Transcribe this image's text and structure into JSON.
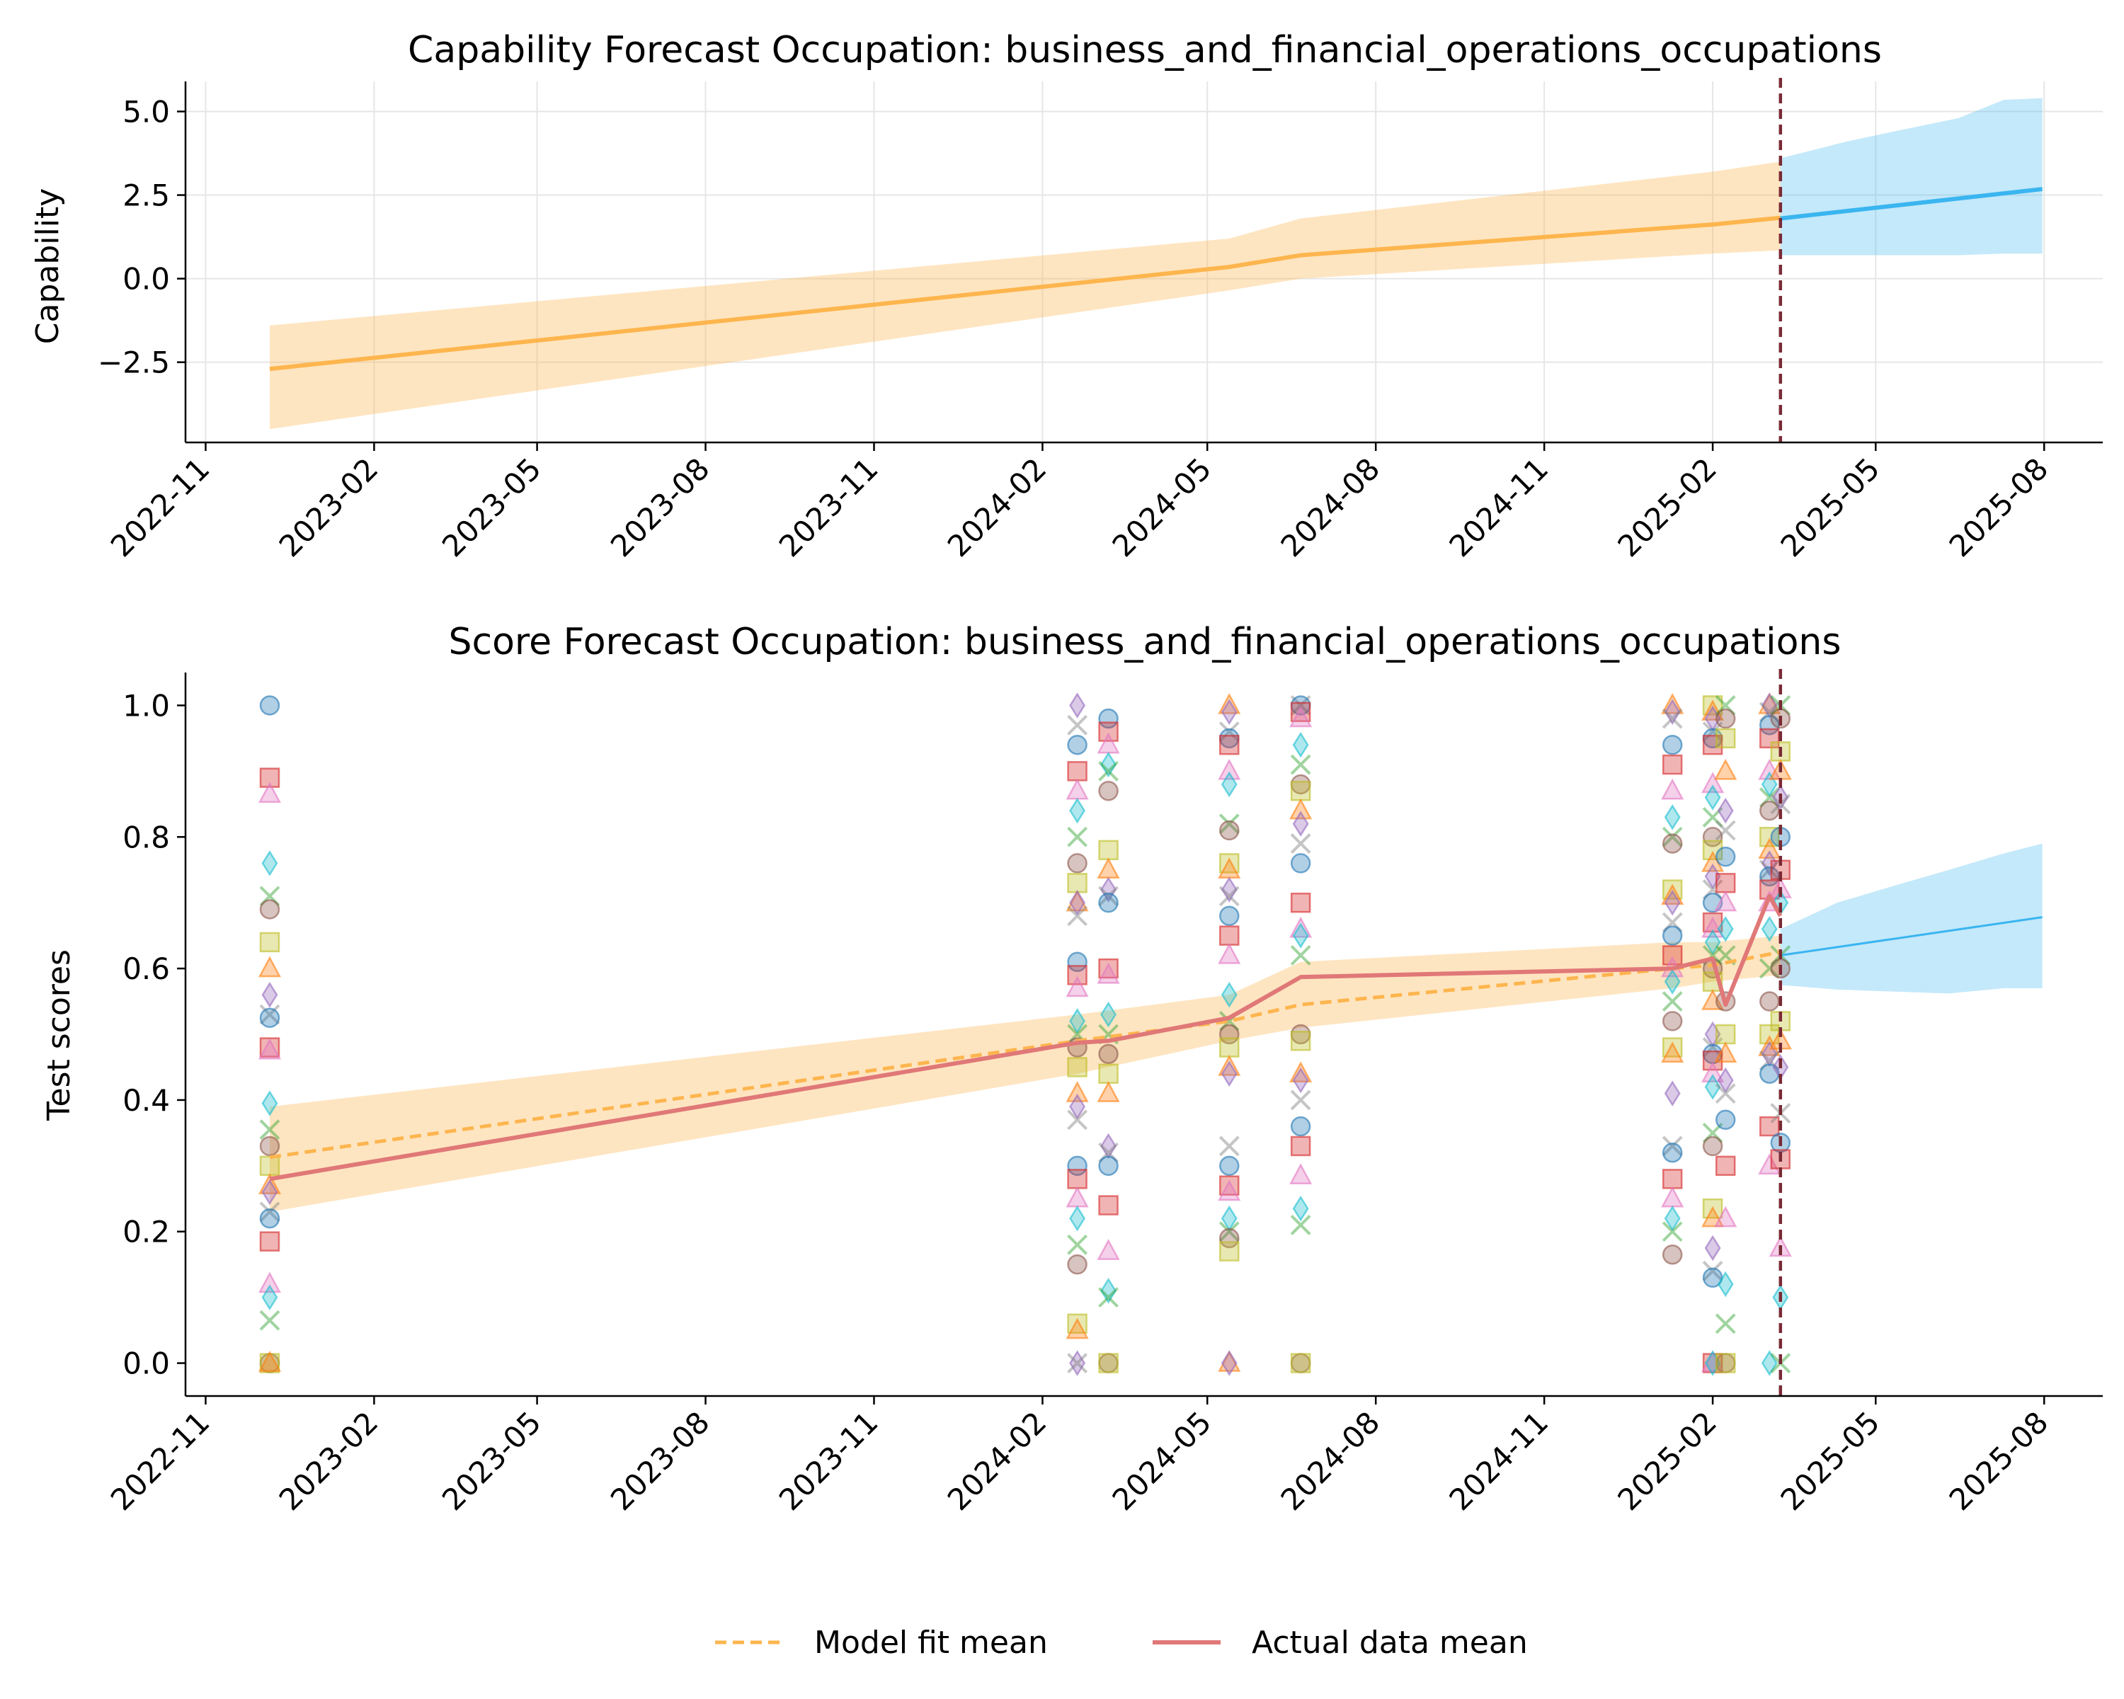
{
  "charts": [
    {
      "type": "line",
      "title": "Capability Forecast Occupation: business_and_financial_operations_occupations",
      "ylabel": "Capability",
      "xlabel": "",
      "ylim": [
        -4.9,
        5.9
      ],
      "xlim": [
        "2022-10-21",
        "2025-09-02"
      ],
      "yticks": [
        5.0,
        2.5,
        0.0,
        -2.5
      ],
      "ytick_labels": [
        "5.0",
        "2.5",
        "0.0",
        "−2.5"
      ],
      "xticks": [
        "2022-11-01",
        "2023-02-01",
        "2023-05-01",
        "2023-08-01",
        "2023-11-01",
        "2024-02-01",
        "2024-05-01",
        "2024-08-01",
        "2024-11-01",
        "2025-02-01",
        "2025-05-01",
        "2025-08-01"
      ],
      "xtick_labels": [
        "2022-11",
        "2023-02",
        "2023-05",
        "2023-08",
        "2023-11",
        "2024-02",
        "2024-05",
        "2024-08",
        "2024-11",
        "2025-02",
        "2025-05",
        "2025-08"
      ],
      "grid": true,
      "cutoff_date": "2025-03-10",
      "series": [
        {
          "role": "fit",
          "color": "#fdb54e",
          "x": [
            "2022-12-06",
            "2024-05-13",
            "2024-06-21",
            "2025-02-01",
            "2025-03-10"
          ],
          "y": [
            -2.7,
            0.35,
            0.7,
            1.62,
            1.82
          ],
          "band_lower": [
            -4.5,
            -0.35,
            0.0,
            0.75,
            0.85
          ],
          "band_upper": [
            -1.4,
            1.2,
            1.8,
            3.2,
            3.5
          ]
        },
        {
          "role": "forecast",
          "color": "#3ab5f0",
          "x": [
            "2025-03-10",
            "2025-07-31"
          ],
          "y": [
            1.8,
            2.68
          ],
          "band_x": [
            "2025-03-10",
            "2025-04-15",
            "2025-05-15",
            "2025-06-15",
            "2025-07-10",
            "2025-07-31"
          ],
          "band_lower": [
            0.7,
            0.7,
            0.7,
            0.7,
            0.75,
            0.75
          ],
          "band_upper": [
            3.6,
            4.1,
            4.45,
            4.8,
            5.35,
            5.4
          ]
        }
      ]
    },
    {
      "type": "scatter",
      "title": "Score Forecast Occupation: business_and_financial_operations_occupations",
      "ylabel": "Test scores",
      "xlabel": "",
      "ylim": [
        -0.05,
        1.05
      ],
      "xlim": [
        "2022-10-21",
        "2025-09-02"
      ],
      "yticks": [
        0.0,
        0.2,
        0.4,
        0.6,
        0.8,
        1.0
      ],
      "ytick_labels": [
        "0.0",
        "0.2",
        "0.4",
        "0.6",
        "0.8",
        "1.0"
      ],
      "xticks": [
        "2022-11-01",
        "2023-02-01",
        "2023-05-01",
        "2023-08-01",
        "2023-11-01",
        "2024-02-01",
        "2024-05-01",
        "2024-08-01",
        "2024-11-01",
        "2025-02-01",
        "2025-05-01",
        "2025-08-01"
      ],
      "xtick_labels": [
        "2022-11",
        "2023-02",
        "2023-05",
        "2023-08",
        "2023-11",
        "2024-02",
        "2024-05",
        "2024-08",
        "2024-11",
        "2025-02",
        "2025-05",
        "2025-08"
      ],
      "grid": false,
      "cutoff_date": "2025-03-10",
      "fit_band": {
        "color": "#fdb54e",
        "x": [
          "2022-12-06",
          "2024-02-20",
          "2024-05-13",
          "2024-06-21",
          "2025-01-10",
          "2025-02-01",
          "2025-03-10"
        ],
        "lower": [
          0.23,
          0.44,
          0.49,
          0.51,
          0.57,
          0.58,
          0.59
        ],
        "upper": [
          0.39,
          0.53,
          0.56,
          0.61,
          0.64,
          0.64,
          0.65
        ]
      },
      "fit_mean": {
        "name": "Model fit mean",
        "color": "#fdb54e",
        "x": [
          "2022-12-06",
          "2024-02-20",
          "2024-05-13",
          "2024-06-21",
          "2025-01-10",
          "2025-02-01",
          "2025-03-10"
        ],
        "y": [
          0.313,
          0.49,
          0.52,
          0.545,
          0.6,
          0.605,
          0.625
        ]
      },
      "actual_mean": {
        "name": "Actual data mean",
        "color": "#e07878",
        "x": [
          "2022-12-06",
          "2024-02-20",
          "2024-03-08",
          "2024-05-13",
          "2024-06-21",
          "2025-01-10",
          "2025-02-01",
          "2025-02-08",
          "2025-03-04",
          "2025-03-10"
        ],
        "y": [
          0.28,
          0.487,
          0.49,
          0.525,
          0.587,
          0.6,
          0.615,
          0.545,
          0.71,
          0.68
        ]
      },
      "forecast": {
        "color": "#3ab5f0",
        "x": [
          "2025-03-10",
          "2025-07-31"
        ],
        "y": [
          0.62,
          0.678
        ],
        "band_x": [
          "2025-03-10",
          "2025-04-10",
          "2025-05-10",
          "2025-06-10",
          "2025-07-10",
          "2025-07-31"
        ],
        "band_lower": [
          0.575,
          0.568,
          0.565,
          0.562,
          0.57,
          0.57
        ],
        "band_upper": [
          0.66,
          0.7,
          0.725,
          0.75,
          0.775,
          0.79
        ]
      },
      "scatter_groups": [
        {
          "date": "2022-12-06",
          "values": [
            1.0,
            0.89,
            0.865,
            0.76,
            0.71,
            0.69,
            0.64,
            0.6,
            0.56,
            0.53,
            0.525,
            0.48,
            0.475,
            0.395,
            0.355,
            0.33,
            0.3,
            0.27,
            0.26,
            0.23,
            0.22,
            0.185,
            0.12,
            0.1,
            0.065,
            0.0,
            0.0,
            0.0
          ]
        },
        {
          "date": "2024-02-20",
          "values": [
            1.0,
            0.97,
            0.94,
            0.9,
            0.87,
            0.84,
            0.8,
            0.76,
            0.73,
            0.7,
            0.7,
            0.68,
            0.61,
            0.59,
            0.57,
            0.52,
            0.5,
            0.48,
            0.45,
            0.41,
            0.39,
            0.37,
            0.3,
            0.28,
            0.25,
            0.22,
            0.18,
            0.15,
            0.06,
            0.05,
            0.0,
            0.0
          ]
        },
        {
          "date": "2024-03-08",
          "values": [
            0.98,
            0.96,
            0.94,
            0.91,
            0.9,
            0.87,
            0.78,
            0.75,
            0.72,
            0.71,
            0.7,
            0.6,
            0.59,
            0.53,
            0.5,
            0.47,
            0.44,
            0.41,
            0.33,
            0.32,
            0.3,
            0.24,
            0.17,
            0.11,
            0.1,
            0.0,
            0.0
          ]
        },
        {
          "date": "2024-05-13",
          "values": [
            1.0,
            0.99,
            0.96,
            0.95,
            0.94,
            0.9,
            0.88,
            0.82,
            0.81,
            0.76,
            0.75,
            0.72,
            0.71,
            0.68,
            0.65,
            0.62,
            0.56,
            0.52,
            0.5,
            0.48,
            0.45,
            0.44,
            0.33,
            0.3,
            0.27,
            0.26,
            0.22,
            0.2,
            0.19,
            0.17,
            0.0,
            0.0
          ]
        },
        {
          "date": "2024-06-21",
          "values": [
            1.0,
            1.0,
            0.99,
            0.98,
            0.94,
            0.91,
            0.88,
            0.87,
            0.84,
            0.82,
            0.79,
            0.76,
            0.7,
            0.66,
            0.65,
            0.62,
            0.5,
            0.49,
            0.44,
            0.43,
            0.4,
            0.36,
            0.33,
            0.285,
            0.235,
            0.21,
            0.0,
            0.0
          ]
        },
        {
          "date": "2025-01-10",
          "values": [
            1.0,
            0.99,
            0.98,
            0.94,
            0.91,
            0.87,
            0.83,
            0.8,
            0.79,
            0.72,
            0.71,
            0.7,
            0.67,
            0.65,
            0.62,
            0.6,
            0.58,
            0.55,
            0.52,
            0.48,
            0.47,
            0.41,
            0.33,
            0.32,
            0.28,
            0.25,
            0.22,
            0.2,
            0.165
          ]
        },
        {
          "date": "2025-02-01",
          "values": [
            1.0,
            0.99,
            0.98,
            0.96,
            0.95,
            0.94,
            0.88,
            0.86,
            0.83,
            0.8,
            0.78,
            0.76,
            0.74,
            0.72,
            0.7,
            0.67,
            0.66,
            0.64,
            0.62,
            0.6,
            0.58,
            0.55,
            0.5,
            0.48,
            0.47,
            0.46,
            0.44,
            0.42,
            0.35,
            0.33,
            0.235,
            0.22,
            0.175,
            0.14,
            0.13,
            0.0,
            0.0,
            0.0
          ]
        },
        {
          "date": "2025-02-08",
          "values": [
            1.0,
            0.98,
            0.95,
            0.9,
            0.84,
            0.81,
            0.77,
            0.73,
            0.7,
            0.66,
            0.62,
            0.55,
            0.5,
            0.47,
            0.43,
            0.41,
            0.37,
            0.3,
            0.22,
            0.12,
            0.06,
            0.0,
            0.0
          ]
        },
        {
          "date": "2025-03-04",
          "values": [
            1.0,
            1.0,
            0.99,
            0.97,
            0.95,
            0.9,
            0.88,
            0.86,
            0.84,
            0.8,
            0.78,
            0.76,
            0.75,
            0.74,
            0.72,
            0.7,
            0.66,
            0.6,
            0.55,
            0.5,
            0.48,
            0.47,
            0.46,
            0.44,
            0.36,
            0.3,
            0.0
          ]
        },
        {
          "date": "2025-03-10",
          "values": [
            1.0,
            0.98,
            0.93,
            0.9,
            0.86,
            0.85,
            0.8,
            0.75,
            0.72,
            0.7,
            0.62,
            0.6,
            0.52,
            0.49,
            0.45,
            0.38,
            0.335,
            0.31,
            0.175,
            0.1,
            0.0
          ]
        }
      ],
      "marker_palette": [
        "#1f77b4",
        "#ff7f0e",
        "#2ca02c",
        "#d62728",
        "#9467bd",
        "#8c564b",
        "#e377c2",
        "#7f7f7f",
        "#bcbd22",
        "#17becf"
      ],
      "marker_shapes": [
        "circle",
        "square",
        "triangle",
        "diamond",
        "x"
      ]
    }
  ],
  "legend": {
    "items": [
      {
        "label": "Model fit mean",
        "color": "#fdb54e",
        "style": "dashed"
      },
      {
        "label": "Actual data mean",
        "color": "#e07878",
        "style": "solid"
      }
    ]
  },
  "cutoff_color": "#7a2a35"
}
